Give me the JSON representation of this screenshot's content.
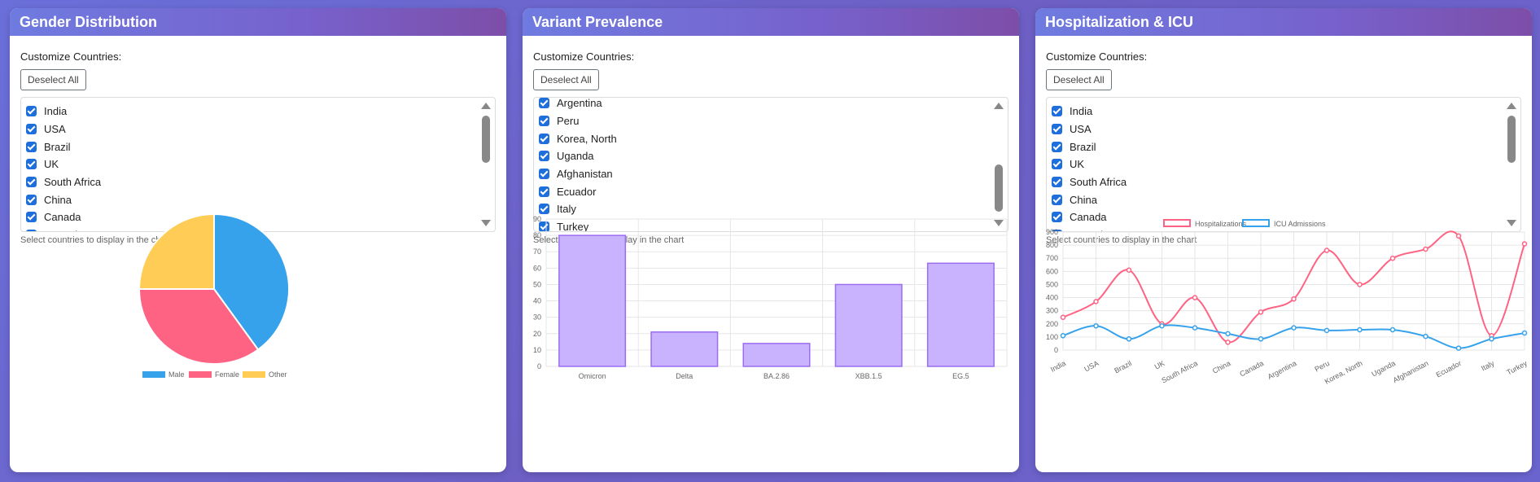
{
  "common": {
    "customize_label": "Customize Countries:",
    "deselect_label": "Deselect All",
    "hint": "Select countries to display in the chart"
  },
  "cards": [
    {
      "title": "Gender Distribution",
      "countries": [
        "India",
        "USA",
        "Brazil",
        "UK",
        "South Africa",
        "China",
        "Canada",
        "Argentina"
      ],
      "scroll": "top"
    },
    {
      "title": "Variant Prevalence",
      "countries": [
        "Argentina",
        "Peru",
        "Korea, North",
        "Uganda",
        "Afghanistan",
        "Ecuador",
        "Italy",
        "Turkey"
      ],
      "scroll": "bottom"
    },
    {
      "title": "Hospitalization & ICU",
      "countries": [
        "India",
        "USA",
        "Brazil",
        "UK",
        "South Africa",
        "China",
        "Canada",
        "Argentina"
      ],
      "scroll": "top"
    }
  ],
  "chart_data": [
    {
      "type": "pie",
      "categories": [
        "Male",
        "Female",
        "Other"
      ],
      "values": [
        40,
        35,
        25
      ],
      "colors": [
        "#36a2eb",
        "#ff6384",
        "#ffcd56"
      ],
      "legend": "bottom"
    },
    {
      "type": "bar",
      "categories": [
        "Omicron",
        "Delta",
        "BA.2.86",
        "XBB.1.5",
        "EG.5"
      ],
      "values": [
        80,
        21,
        14,
        50,
        63
      ],
      "ylim": [
        0,
        90
      ],
      "yticks": [
        0,
        10,
        20,
        30,
        40,
        50,
        60,
        70,
        80,
        90
      ],
      "color": "#c9b3ff",
      "border": "#9b6df0",
      "grid": true
    },
    {
      "type": "line",
      "categories": [
        "India",
        "USA",
        "Brazil",
        "UK",
        "South Africa",
        "China",
        "Canada",
        "Argentina",
        "Peru",
        "Korea, North",
        "Uganda",
        "Afghanistan",
        "Ecuador",
        "Italy",
        "Turkey"
      ],
      "series": [
        {
          "name": "Hospitalizations",
          "color": "#ff6384",
          "values": [
            250,
            370,
            610,
            200,
            400,
            60,
            290,
            390,
            760,
            500,
            700,
            770,
            870,
            110,
            810
          ]
        },
        {
          "name": "ICU Admissions",
          "color": "#36a2eb",
          "values": [
            110,
            185,
            85,
            185,
            170,
            125,
            85,
            170,
            150,
            155,
            155,
            105,
            15,
            85,
            130
          ]
        }
      ],
      "ylim": [
        0,
        900
      ],
      "yticks": [
        0,
        100,
        200,
        300,
        400,
        500,
        600,
        700,
        800,
        900
      ],
      "legend": "top",
      "grid": true
    }
  ]
}
